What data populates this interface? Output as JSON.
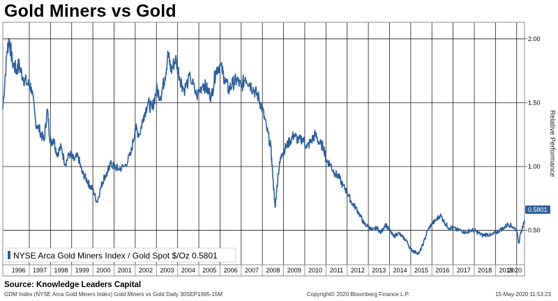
{
  "header": {
    "title": "Gold Miners vs Gold"
  },
  "chart_data": {
    "type": "line",
    "title": "Gold Miners vs Gold",
    "ylabel": "Relative Performance",
    "xlabel": "",
    "xlim": [
      1995.75,
      2020.37
    ],
    "ylim": [
      0.23,
      2.13
    ],
    "y_ticks": [
      0.5,
      1.0,
      1.5,
      2.0
    ],
    "y_tick_labels": [
      "0.50",
      "1.00",
      "1.50",
      "2.00"
    ],
    "x_tick_labels": [
      "1996",
      "1997",
      "1998",
      "1999",
      "2000",
      "2001",
      "2002",
      "2003",
      "2004",
      "2005",
      "2006",
      "2007",
      "2008",
      "2009",
      "2010",
      "2011",
      "2012",
      "2013",
      "2014",
      "2015",
      "2016",
      "2017",
      "2018",
      "2019",
      "2020"
    ],
    "grid": true,
    "legend": {
      "position": "bottom-left",
      "text": "NYSE Arca Gold Miners Index / Gold Spot $/Oz 0.5801"
    },
    "last_value_label": "0.5801",
    "series": [
      {
        "name": "NYSE Arca Gold Miners Index / Gold Spot $/Oz",
        "color": "#2e5f9a",
        "x": [
          1995.75,
          1995.95,
          1996.05,
          1996.2,
          1996.4,
          1996.5,
          1996.7,
          1996.9,
          1997.1,
          1997.3,
          1997.5,
          1997.7,
          1997.85,
          1998.0,
          1998.15,
          1998.3,
          1998.5,
          1998.7,
          1998.9,
          1999.1,
          1999.3,
          1999.5,
          1999.7,
          1999.85,
          2000.0,
          2000.2,
          2000.4,
          2000.55,
          2000.7,
          2000.8,
          2001.0,
          2001.2,
          2001.5,
          2001.8,
          2002.0,
          2002.2,
          2002.4,
          2002.6,
          2002.8,
          2003.0,
          2003.2,
          2003.4,
          2003.55,
          2003.7,
          2003.9,
          2004.1,
          2004.3,
          2004.6,
          2004.9,
          2005.2,
          2005.4,
          2005.6,
          2005.8,
          2006.0,
          2006.2,
          2006.4,
          2006.6,
          2006.8,
          2007.0,
          2007.2,
          2007.4,
          2007.6,
          2007.8,
          2008.0,
          2008.2,
          2008.4,
          2008.5,
          2008.6,
          2008.75,
          2008.9,
          2009.1,
          2009.3,
          2009.5,
          2009.7,
          2009.9,
          2010.1,
          2010.3,
          2010.5,
          2010.7,
          2010.9,
          2011.0,
          2011.2,
          2011.4,
          2011.6,
          2011.8,
          2012.0,
          2012.2,
          2012.4,
          2012.6,
          2012.8,
          2013.0,
          2013.2,
          2013.4,
          2013.6,
          2013.8,
          2014.0,
          2014.2,
          2014.4,
          2014.6,
          2014.8,
          2015.0,
          2015.2,
          2015.4,
          2015.6,
          2015.8,
          2016.0,
          2016.2,
          2016.4,
          2016.6,
          2016.8,
          2017.0,
          2017.2,
          2017.4,
          2017.6,
          2017.8,
          2018.0,
          2018.2,
          2018.4,
          2018.6,
          2018.8,
          2019.0,
          2019.2,
          2019.4,
          2019.6,
          2019.8,
          2020.0,
          2020.1,
          2020.2,
          2020.37
        ],
        "values": [
          1.45,
          1.9,
          2.0,
          1.82,
          1.75,
          1.8,
          1.7,
          1.65,
          1.62,
          1.35,
          1.28,
          1.2,
          1.45,
          1.18,
          1.22,
          1.1,
          1.15,
          1.02,
          1.1,
          1.05,
          1.08,
          0.95,
          0.9,
          0.85,
          0.82,
          0.72,
          0.85,
          0.92,
          0.95,
          1.02,
          1.0,
          0.98,
          1.0,
          1.1,
          1.3,
          1.25,
          1.4,
          1.5,
          1.45,
          1.6,
          1.55,
          1.7,
          1.88,
          1.75,
          1.85,
          1.7,
          1.6,
          1.7,
          1.55,
          1.65,
          1.6,
          1.55,
          1.75,
          1.8,
          1.7,
          1.6,
          1.65,
          1.68,
          1.62,
          1.7,
          1.65,
          1.6,
          1.55,
          1.45,
          1.3,
          1.15,
          0.9,
          0.68,
          0.95,
          1.1,
          1.15,
          1.2,
          1.25,
          1.2,
          1.22,
          1.15,
          1.2,
          1.25,
          1.18,
          1.15,
          1.05,
          1.02,
          0.95,
          0.92,
          0.85,
          0.8,
          0.72,
          0.68,
          0.62,
          0.55,
          0.53,
          0.5,
          0.52,
          0.48,
          0.55,
          0.5,
          0.45,
          0.48,
          0.45,
          0.42,
          0.35,
          0.33,
          0.32,
          0.4,
          0.5,
          0.55,
          0.58,
          0.62,
          0.56,
          0.52,
          0.52,
          0.5,
          0.5,
          0.48,
          0.5,
          0.5,
          0.48,
          0.46,
          0.47,
          0.46,
          0.48,
          0.5,
          0.52,
          0.55,
          0.53,
          0.5,
          0.4,
          0.48,
          0.5801
        ]
      }
    ]
  },
  "footer": {
    "source": "Source:  Knowledge Leaders Capital",
    "index_info": "GDM Index (NYSE Arca Gold Miners Index) Gold Miners vs Gold  Daily 30SEP1995-15M",
    "copyright": "Copyright© 2020 Bloomberg Finance L.P.",
    "timestamp": "15-May-2020 11:53:23"
  }
}
